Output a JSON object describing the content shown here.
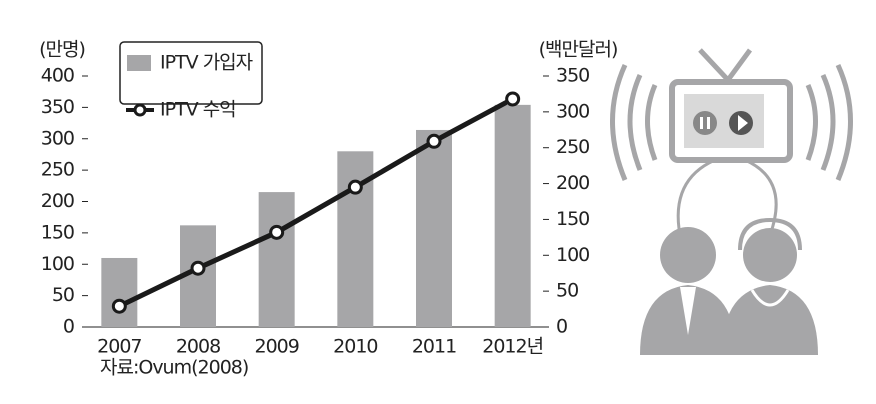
{
  "chart_data": {
    "type": "bar",
    "y_label": "(만명)",
    "y2_label": "(백만달러)",
    "source": "자료:Ovum(2008)",
    "categories": [
      "2007",
      "2008",
      "2009",
      "2010",
      "2011",
      "2012년"
    ],
    "series": [
      {
        "name": "IPTV 가입자",
        "color": "#a6a6a8",
        "values": [
          110,
          162,
          215,
          280,
          314,
          354
        ]
      },
      {
        "name": "IPTV 수익",
        "color": "#1a1a1a",
        "values": [
          29,
          82,
          132,
          195,
          259,
          318
        ],
        "axis": "y2"
      }
    ],
    "ylim": [
      0,
      400
    ],
    "yticks": [
      0,
      50,
      100,
      150,
      200,
      250,
      300,
      350,
      400
    ],
    "y2lim": [
      0,
      350
    ],
    "y2ticks": [
      0,
      50,
      100,
      150,
      200,
      250,
      300,
      350
    ],
    "legend": "top-left",
    "grid": false
  }
}
